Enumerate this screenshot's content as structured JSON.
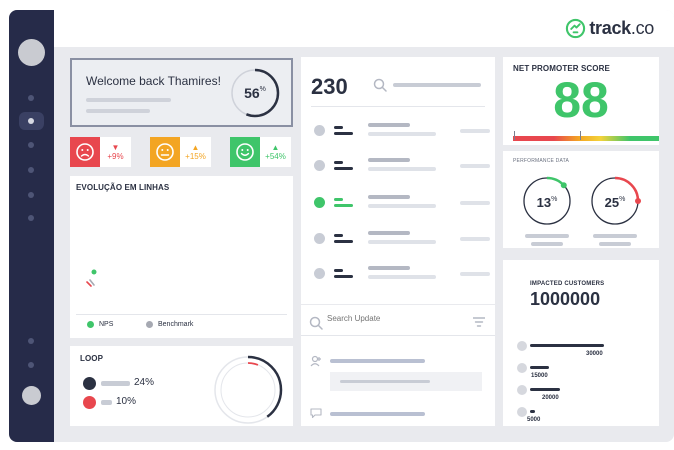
{
  "brand": {
    "logo_text": "track",
    "logo_suffix": ".co",
    "accent": "#3fc56a"
  },
  "welcome": {
    "title": "Welcome back Thamires!",
    "progress_value": "56",
    "progress_unit": "%",
    "progress_fraction": 0.56
  },
  "moods": [
    {
      "name": "sad",
      "color": "#e8474e",
      "trend": "down",
      "delta": "+9%"
    },
    {
      "name": "neutral",
      "color": "#f3a523",
      "trend": "up",
      "delta": "+15%"
    },
    {
      "name": "happy",
      "color": "#3fc56a",
      "trend": "up",
      "delta": "+54%"
    }
  ],
  "evolution": {
    "title": "EVOLUÇÃO EM LINHAS",
    "legend": [
      {
        "label": "NPS",
        "color": "#3fc56a"
      },
      {
        "label": "Benchmark",
        "color": "#a6a9b2"
      }
    ]
  },
  "loop": {
    "title": "LOOP",
    "items": [
      {
        "value": "24%",
        "color": "#2b3142"
      },
      {
        "value": "10%",
        "color": "#e8474e"
      }
    ]
  },
  "list_panel": {
    "count": "230",
    "rows": [
      {
        "status_color": "#c8ccd5",
        "active": false
      },
      {
        "status_color": "#c8ccd5",
        "active": false
      },
      {
        "status_color": "#3fc56a",
        "active": true
      },
      {
        "status_color": "#c8ccd5",
        "active": false
      },
      {
        "status_color": "#c8ccd5",
        "active": false
      }
    ]
  },
  "updates": {
    "search_placeholder": "Search Update"
  },
  "nps": {
    "title": "NET PROMOTER SCORE",
    "score": "88",
    "score_color": "#3fc56a"
  },
  "performance": {
    "title": "PERFORMANCE DATA",
    "gauges": [
      {
        "value": "13",
        "unit": "%",
        "fraction": 0.13,
        "color": "#3fc56a"
      },
      {
        "value": "25",
        "unit": "%",
        "fraction": 0.25,
        "color": "#e8474e"
      }
    ]
  },
  "impacted": {
    "title": "IMPACTED CUSTOMERS",
    "total": "1000000",
    "rows": [
      {
        "value": "30000",
        "fraction": 1.0
      },
      {
        "value": "15000",
        "fraction": 0.26
      },
      {
        "value": "20000",
        "fraction": 0.41
      },
      {
        "value": "5000",
        "fraction": 0.07
      }
    ]
  }
}
